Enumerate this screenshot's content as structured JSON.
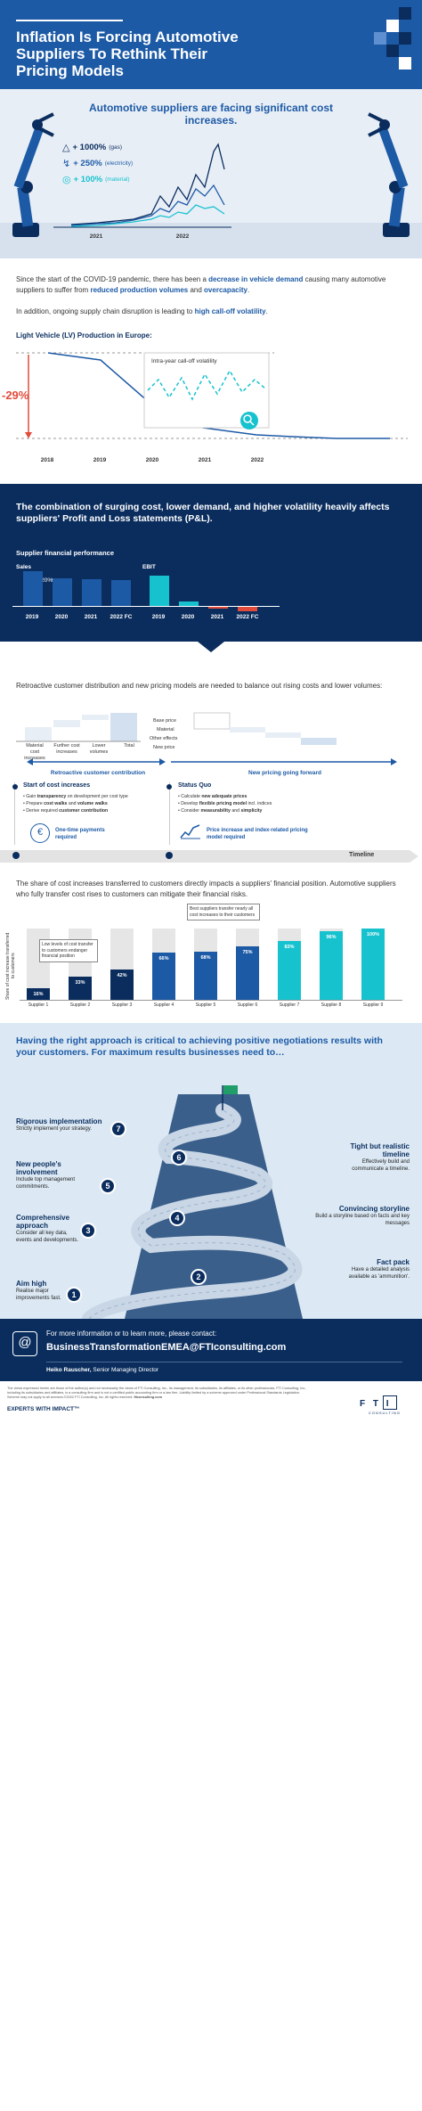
{
  "header": {
    "title": "Inflation Is Forcing Automotive Suppliers To Rethink Their Pricing Models"
  },
  "hero": {
    "heading": "Automotive suppliers are facing significant cost increases.",
    "stats": [
      {
        "value": "+ 1000%",
        "label": "(gas)",
        "icon": "flame-icon"
      },
      {
        "value": "+ 250%",
        "label": "(electricity)",
        "icon": "lightning-icon"
      },
      {
        "value": "+ 100%",
        "label": "(material)",
        "icon": "material-icon"
      }
    ],
    "x_labels": [
      "2021",
      "2022"
    ]
  },
  "intro": {
    "p1_a": "Since the start of the COVID-19 pandemic, there has been a ",
    "p1_b": "decrease in vehicle demand",
    "p1_c": " causing many automotive suppliers to suffer from ",
    "p1_d": "reduced production volumes",
    "p1_e": " and ",
    "p1_f": "overcapacity",
    "p1_g": ".",
    "p2_a": "In addition, ongoing supply chain disruption is leading to ",
    "p2_b": "high call-off volatility",
    "p2_c": "."
  },
  "production": {
    "title": "Light Vehicle (LV) Production in Europe:",
    "change": "-29%",
    "inset_label": "Intra-year call-off volatility",
    "years": [
      "2018",
      "2019",
      "2020",
      "2021",
      "2022"
    ]
  },
  "pl": {
    "heading": "The combination of surging cost, lower demand, and higher volatility heavily affects suppliers' Profit and Loss statements (P&L).",
    "subtitle": "Supplier financial performance",
    "sales_label": "Sales",
    "ebit_label": "EBIT",
    "sales_change": "-20%",
    "years": [
      "2019",
      "2020",
      "2021",
      "2022 FC"
    ],
    "colors": {
      "navy": "#0a2d5e",
      "blue": "#1d5aa6",
      "teal": "#17c2cf",
      "red": "#e14b3b"
    }
  },
  "pricing": {
    "intro": "Retroactive customer distribution and new pricing models are needed to balance out rising costs and lower volumes:",
    "wf_left": [
      "Material cost increases",
      "Further cost increases",
      "Lower volumes",
      "Total"
    ],
    "wf_right": [
      "Base price",
      "Material",
      "Other effects",
      "New price"
    ],
    "arrow_left": "Retroactive customer contribution",
    "arrow_right": "New pricing going forward",
    "left_title": "Start of cost increases",
    "left_bullets": [
      {
        "a": "Gain ",
        "b": "transparency",
        "c": " on development per cost type"
      },
      {
        "a": "Prepare ",
        "b": "cost walks",
        "c": " and ",
        "d": "volume walks"
      },
      {
        "a": "Derive required ",
        "b": "customer contribution",
        "c": ""
      }
    ],
    "left_note": "One-time payments required",
    "right_title": "Status Quo",
    "right_bullets": [
      {
        "a": "Calculate ",
        "b": "new adequate prices",
        "c": ""
      },
      {
        "a": "Develop ",
        "b": "flexible pricing model",
        "c": " incl. indices"
      },
      {
        "a": "Consider ",
        "b": "measurability",
        "c": " and ",
        "d": "simplicity"
      }
    ],
    "right_note": "Price increase and index-related pricing model required",
    "timeline": "Timeline"
  },
  "transfer": {
    "intro": "The share of cost increases transferred to customers directly impacts a suppliers' financial position. Automotive suppliers who fully transfer cost rises to customers can mitigate their financial risks.",
    "ylabel": "Share of cost increase transferred to customers",
    "callout_low": "Low levels of cost transfer to customers endanger financial position",
    "callout_high": "Best suppliers transfer nearly all cost increases to their customers"
  },
  "chart_data": {
    "type": "bar",
    "categories": [
      "Supplier 1",
      "Supplier 2",
      "Supplier 3",
      "Supplier 4",
      "Supplier 5",
      "Supplier 6",
      "Supplier 7",
      "Supplier 8",
      "Supplier 9"
    ],
    "values": [
      16,
      33,
      42,
      66,
      68,
      75,
      83,
      96,
      100
    ],
    "value_labels": [
      "16%",
      "33%",
      "42%",
      "66%",
      "68%",
      "75%",
      "83%",
      "96%",
      "100%"
    ],
    "ylabel": "Share of cost increase transferred to customers",
    "ylim": [
      0,
      100
    ]
  },
  "approach": {
    "heading": "Having the right approach is critical to achieving positive negotiations results with your customers. For maximum results businesses need to…",
    "steps": [
      {
        "n": "1",
        "title": "Aim high",
        "desc": "Realise major improvements fast."
      },
      {
        "n": "2",
        "title": "Fact pack",
        "desc": "Have a detailed analysis available as 'ammunition'."
      },
      {
        "n": "3",
        "title": "Comprehensive approach",
        "desc": "Consider all key data, events and developments."
      },
      {
        "n": "4",
        "title": "Convincing storyline",
        "desc": "Build a storyline based on facts and key messages"
      },
      {
        "n": "5",
        "title": "New people's involvement",
        "desc": "Include top management commitments."
      },
      {
        "n": "6",
        "title": "Tight but realistic timeline",
        "desc": "Effectively build and communicate a timeline."
      },
      {
        "n": "7",
        "title": "Rigorous implementation",
        "desc": "Strictly implement your strategy."
      }
    ]
  },
  "contact": {
    "line1": "For more information or to learn more, please contact:",
    "email": "BusinessTransformationEMEA@FTIconsulting.com",
    "name": "Heiko Rauscher,",
    "role": " Senior Managing Director"
  },
  "footer": {
    "disclaimer": "The views expressed herein are those of the author(s) and not necessarily the views of FTI Consulting, Inc., its management, its subsidiaries, its affiliates, or its other professionals. FTI Consulting, Inc., including its subsidiaries and affiliates, is a consulting firm and is not a certified public accounting firm or a law firm. Liability limited by a scheme approved under Professional Standards Legislation. Scheme may not apply to all services.©2022 FTI Consulting, Inc. All rights reserved.",
    "site": "fticonsulting.com",
    "tagline": "EXPERTS WITH IMPACT™",
    "logo_main": "F T I",
    "logo_sub": "CONSULTING"
  }
}
